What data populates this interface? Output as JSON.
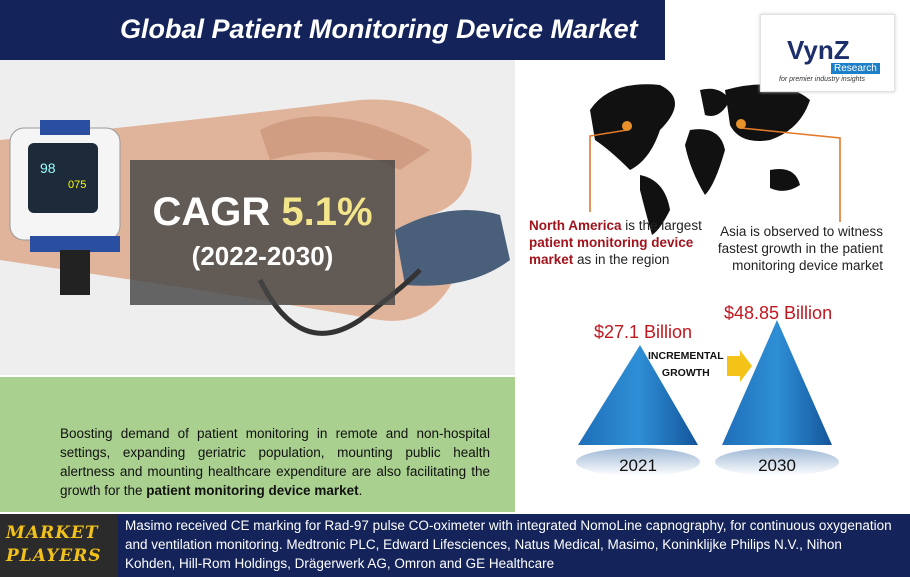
{
  "header": {
    "title": "Global Patient Monitoring Device Market"
  },
  "logo": {
    "name": "VynZ",
    "sub": "Research",
    "tagline": "for premier industry insights"
  },
  "cagr": {
    "label": "CAGR",
    "value": "5.1%",
    "period": "(2022-2030)"
  },
  "regions": [
    {
      "parts": [
        "North America",
        " is the largest ",
        "patient monitoring device market",
        " as in the region"
      ]
    },
    {
      "parts": [
        "Asia is observed to witness fastest growth in the patient monitoring device market"
      ]
    }
  ],
  "market_size": [
    {
      "year": "2021",
      "value": "$27.1 Billion"
    },
    {
      "year": "2030",
      "value": "$48.85 Billion"
    }
  ],
  "growth_label": [
    "INCREMENTAL",
    "GROWTH"
  ],
  "drivers": {
    "parts": [
      "Boosting demand of patient monitoring in remote and non-hospital settings, expanding geriatric population, mounting public health alertness and mounting healthcare expenditure are also facilitating the growth for the ",
      "patient monitoring device market",
      "."
    ]
  },
  "footer": {
    "label": [
      "MARKET",
      "PLAYERS"
    ],
    "text": "Masimo received CE marking for Rad-97 pulse CO-oximeter with integrated NomoLine capnography, for continuous oxygenation and ventilation monitoring. Medtronic PLC, Edward Lifesciences, Natus Medical, Masimo, Koninklijke Philips N.V., Nihon Kohden, Hill-Rom Holdings, Drägerwerk AG, Omron and GE Healthcare"
  }
}
